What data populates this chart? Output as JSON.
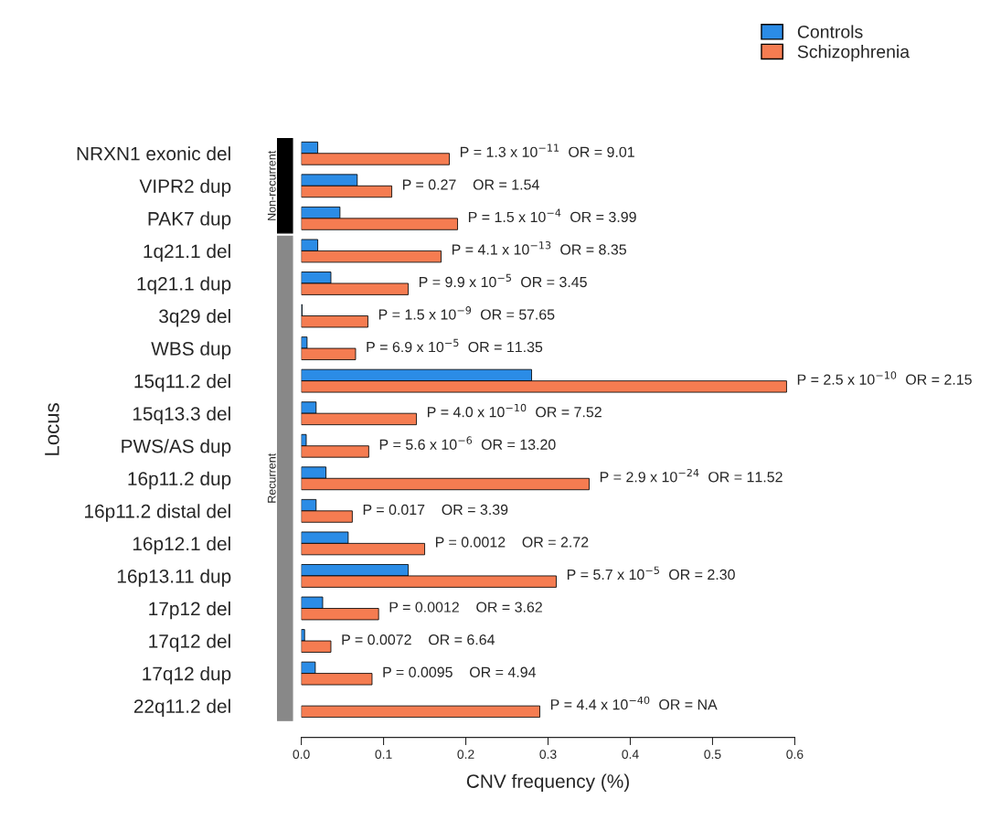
{
  "chart_data": {
    "type": "bar",
    "orientation": "horizontal",
    "xlabel": "CNV frequency (%)",
    "ylabel": "Locus",
    "categories": [
      "NRXN1 exonic del",
      "VIPR2 dup",
      "PAK7 dup",
      "1q21.1 del",
      "1q21.1 dup",
      "3q29 del",
      "WBS dup",
      "15q11.2 del",
      "15q13.3 del",
      "PWS/AS dup",
      "16p11.2 dup",
      "16p11.2 distal del",
      "16p12.1 del",
      "16p13.11 dup",
      "17p12 del",
      "17q12 del",
      "17q12 dup",
      "22q11.2 del"
    ],
    "series": [
      {
        "name": "Controls",
        "color": "#2b8ce6",
        "values": [
          0.02,
          0.068,
          0.047,
          0.02,
          0.036,
          0.001,
          0.007,
          0.28,
          0.018,
          0.006,
          0.03,
          0.018,
          0.057,
          0.13,
          0.026,
          0.004,
          0.017,
          0.0
        ]
      },
      {
        "name": "Schizophrenia",
        "color": "#f57c51",
        "values": [
          0.18,
          0.11,
          0.19,
          0.17,
          0.13,
          0.081,
          0.066,
          0.59,
          0.14,
          0.082,
          0.35,
          0.062,
          0.15,
          0.31,
          0.094,
          0.036,
          0.086,
          0.29
        ]
      }
    ],
    "xlim": [
      0.0,
      0.6
    ],
    "xticks": [
      {
        "value": 0.0,
        "label": "0.0"
      },
      0.1,
      0.2,
      0.3,
      0.4,
      0.5,
      0.6
    ],
    "legend": "top right",
    "annotations": [
      "Non-recurrent",
      "Recurrent",
      {
        "text": "P = 1.3 x 10$^{−11}$  OR = 9.01",
        "x": 0.18,
        "y": "NRXN1 exonic del"
      },
      {
        "text": "P = 0.27    OR = 1.54",
        "x": 0.11,
        "y": "VIPR2 dup"
      },
      {
        "text": "P = 1.5 x 10$^{−4}$  OR = 3.99",
        "x": 0.19,
        "y": "PAK7 dup"
      },
      {
        "text": "P = 4.1 x 10$^{−13}$  OR = 8.35",
        "x": 0.17,
        "y": "1q21.1 del"
      },
      {
        "text": "P = 9.9 x 10$^{−5}$  OR = 3.45",
        "x": 0.13,
        "y": "1q21.1 dup"
      },
      {
        "text": "P = 1.5 x 10$^{−9}$  OR = 57.65",
        "x": 0.081,
        "y": "3q29 del"
      },
      {
        "text": "P = 6.9 x 10$^{−5}$  OR = 11.35",
        "x": 0.066,
        "y": "WBS dup"
      },
      {
        "text": "P = 2.5 x 10$^{−10}$  OR = 2.15",
        "x": 0.59,
        "y": "15q11.2 del"
      },
      {
        "text": "P = 4.0 x 10$^{−10}$  OR = 7.52",
        "x": 0.14,
        "y": "15q13.3 del"
      },
      {
        "text": "P = 5.6 x 10$^{−6}$  OR = 13.20",
        "x": 0.082,
        "y": "PWS/AS dup"
      },
      {
        "text": "P = 2.9 x 10$^{−24}$  OR = 11.52",
        "x": 0.35,
        "y": "16p11.2 dup"
      },
      {
        "text": "P = 0.017    OR = 3.39",
        "x": 0.062,
        "y": "16p11.2 distal del"
      },
      {
        "text": "P = 0.0012    OR = 2.72",
        "x": 0.15,
        "y": "16p12.1 del"
      },
      {
        "text": "P = 5.7 x 10$^{−5}$  OR = 2.30",
        "x": 0.31,
        "y": "16p13.11 dup"
      },
      {
        "text": "P = 0.0012    OR = 3.62",
        "x": 0.094,
        "y": "17p12 del"
      },
      {
        "text": "P = 0.0072    OR = 6.64",
        "x": 0.036,
        "y": "17q12 del"
      },
      {
        "text": "P = 0.0095    OR = 4.94",
        "x": 0.086,
        "y": "17q12 dup"
      },
      {
        "text": "P = 4.4 x 10$^{−40}$  OR = NA",
        "x": 0.29,
        "y": "22q11.2 del"
      }
    ]
  }
}
